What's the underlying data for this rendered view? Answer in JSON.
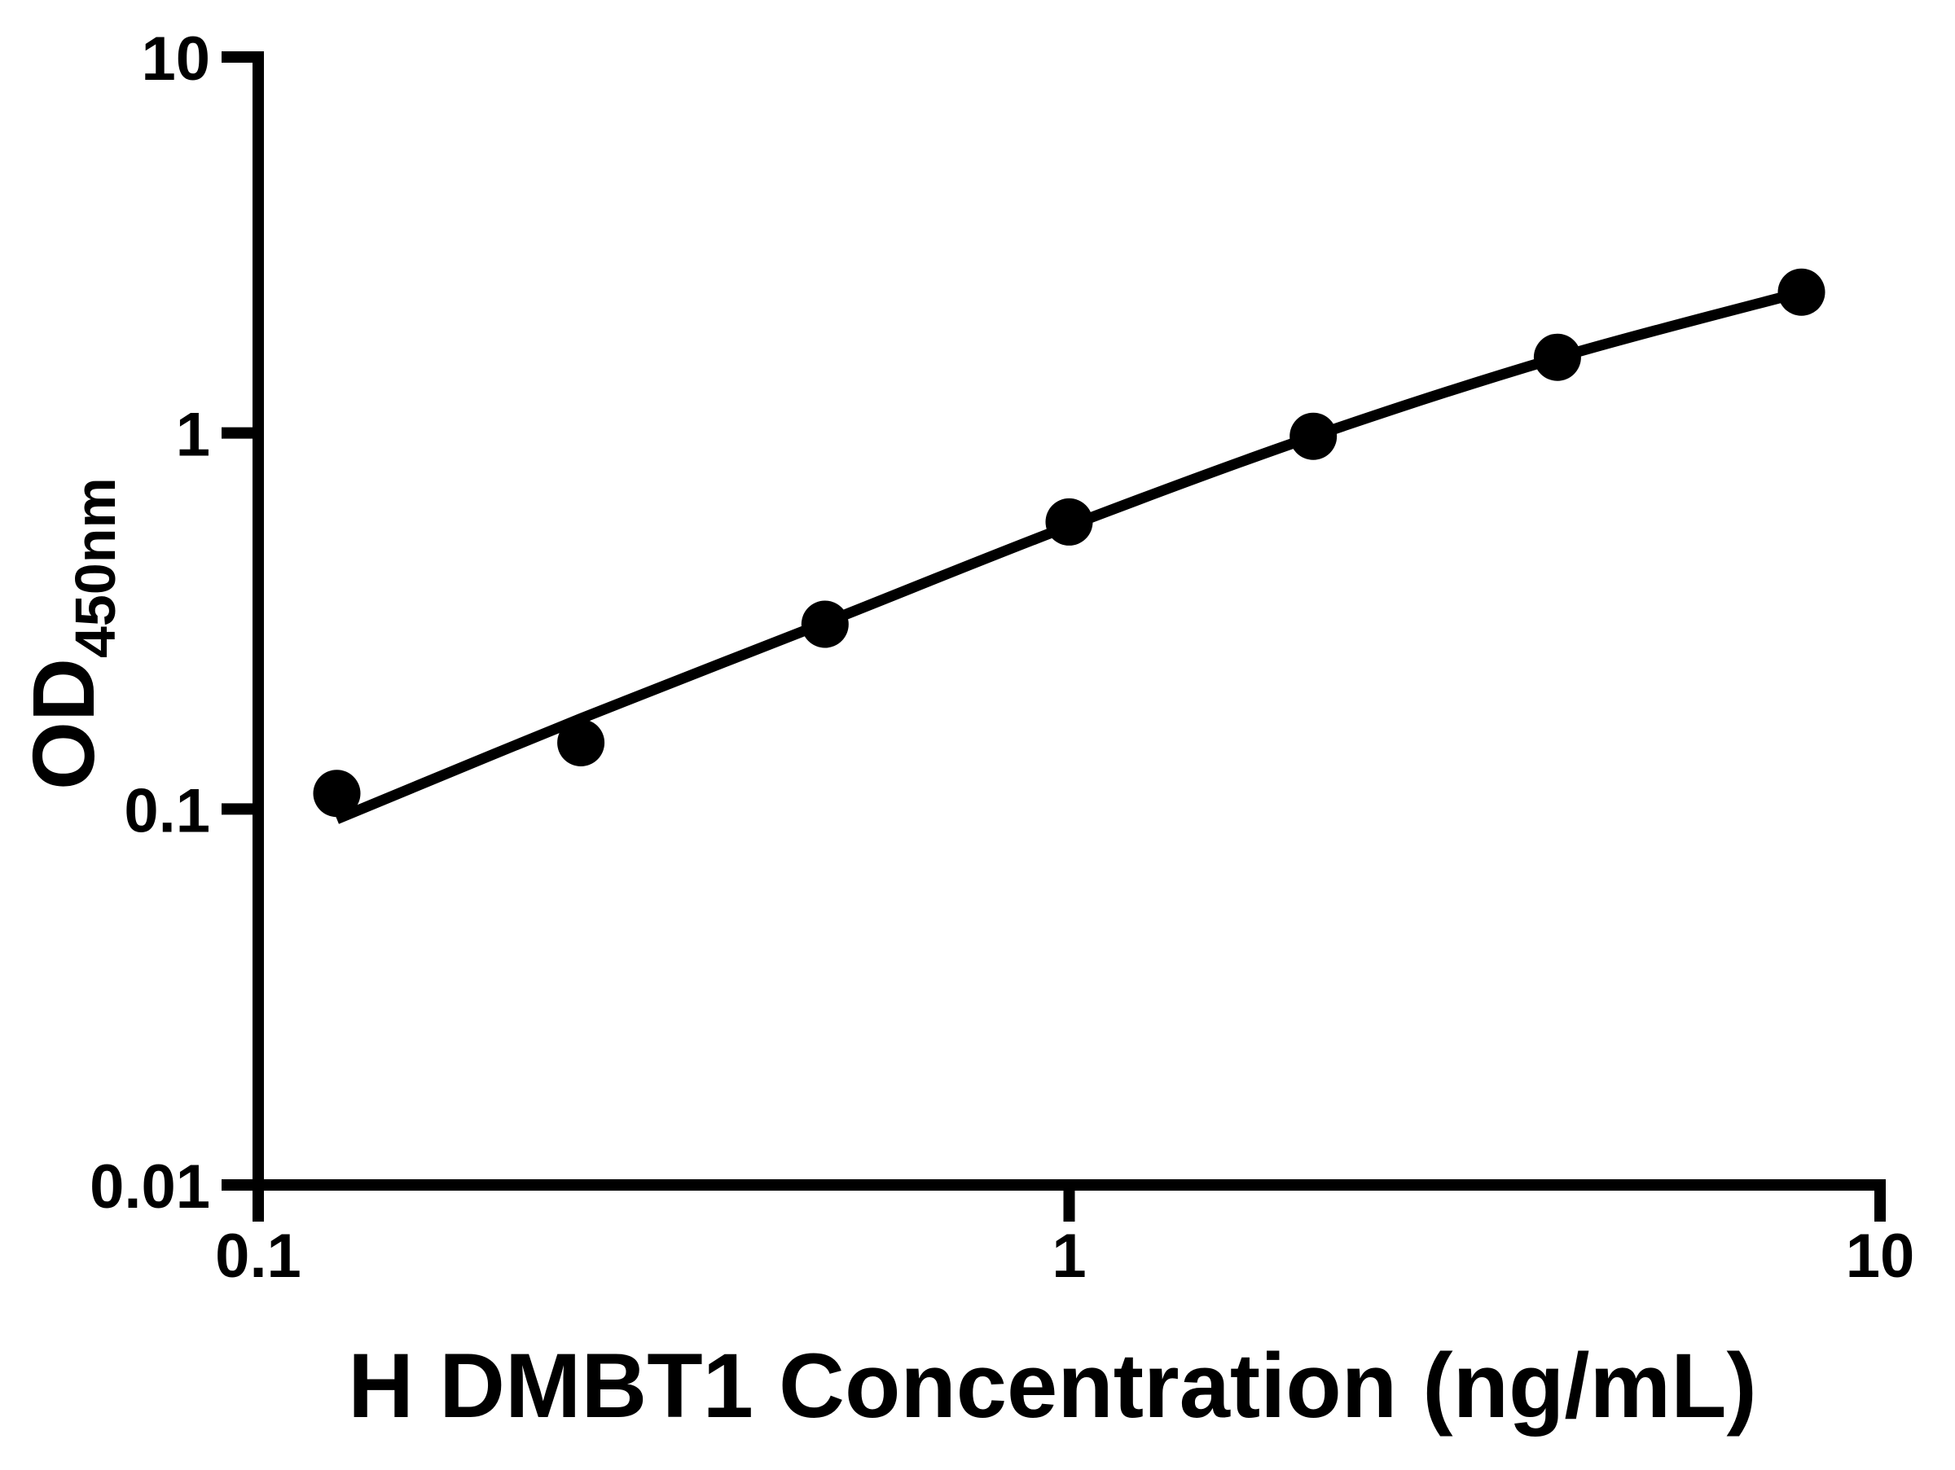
{
  "page": {
    "background": "#ffffff"
  },
  "colors": {
    "axis": "#000000",
    "marker": "#000000",
    "curve": "#000000",
    "tick_label": "#000000",
    "background": "#ffffff"
  },
  "chart_data": {
    "type": "scatter",
    "title": "",
    "xlabel": "H DMBT1 Concentration (ng/mL)",
    "ylabel": {
      "main": "OD",
      "subscript": "450nm"
    },
    "x_scale": "log",
    "y_scale": "log",
    "xlim": [
      0.1,
      10
    ],
    "ylim": [
      0.01,
      10
    ],
    "grid": false,
    "legend": "none",
    "x_ticks": [
      {
        "value": 0.1,
        "label": "0.1"
      },
      {
        "value": 1,
        "label": "1"
      },
      {
        "value": 10,
        "label": "10"
      }
    ],
    "y_ticks": [
      {
        "value": 10,
        "label": "10"
      },
      {
        "value": 1,
        "label": "1"
      },
      {
        "value": 0.1,
        "label": "0.1"
      },
      {
        "value": 0.01,
        "label": "0.01"
      }
    ],
    "series": [
      {
        "name": "standard-points",
        "kind": "scatter",
        "marker": "filled-circle",
        "color": "#000000",
        "x": [
          0.125,
          0.25,
          0.5,
          1,
          2,
          4,
          8
        ],
        "y": [
          0.11,
          0.15,
          0.31,
          0.58,
          0.98,
          1.59,
          2.37
        ]
      },
      {
        "name": "fitted-curve",
        "kind": "line",
        "color": "#000000",
        "x": [
          0.125,
          0.25,
          0.5,
          1,
          2,
          4,
          8
        ],
        "y": [
          0.094,
          0.174,
          0.313,
          0.566,
          0.98,
          1.585,
          2.368
        ]
      }
    ]
  }
}
